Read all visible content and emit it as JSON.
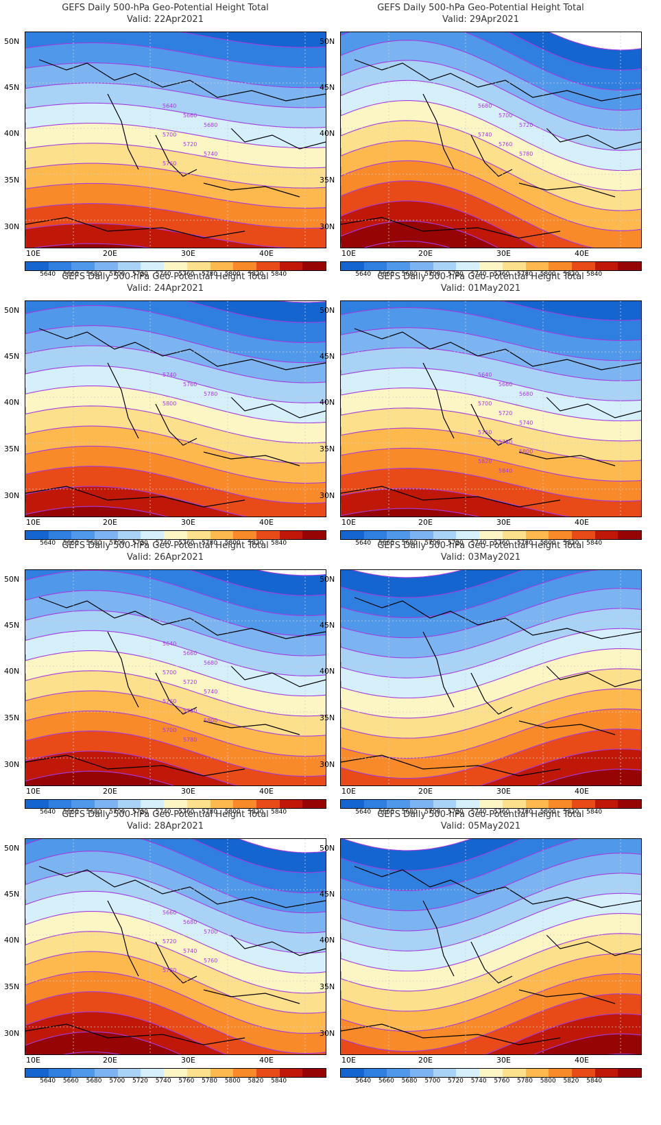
{
  "title": "GEFS Daily 500-hPa Geo-Potential Height Total",
  "valid_prefix": "Valid:",
  "lat_ticks": [
    "50N",
    "45N",
    "40N",
    "35N",
    "30N"
  ],
  "lon_ticks": [
    "10E",
    "20E",
    "30E",
    "40E"
  ],
  "colorbar": {
    "labels": [
      "5640",
      "5660",
      "5680",
      "5700",
      "5720",
      "5740",
      "5760",
      "5780",
      "5800",
      "5820",
      "5840"
    ],
    "colors": [
      "#1565d0",
      "#2f7fe0",
      "#4f98ea",
      "#7bb4f0",
      "#a9d2f7",
      "#d6f0fb",
      "#fbf6c4",
      "#fde08c",
      "#fdb94d",
      "#f88a2a",
      "#e84b17",
      "#c01808",
      "#960404"
    ]
  },
  "contour_color": "#a43be0",
  "panels": [
    {
      "id": "p1",
      "valid": "22Apr2021",
      "ridge": 0.3,
      "labels": [
        "5640",
        "5660",
        "5680",
        "5700",
        "5720",
        "5740",
        "5760"
      ]
    },
    {
      "id": "p2",
      "valid": "29Apr2021",
      "ridge": 0.85,
      "labels": [
        "5680",
        "5700",
        "5720",
        "5740",
        "5760",
        "5780"
      ]
    },
    {
      "id": "p3",
      "valid": "24Apr2021",
      "ridge": 0.45,
      "labels": [
        "5740",
        "5760",
        "5780",
        "5800"
      ]
    },
    {
      "id": "p4",
      "valid": "01May2021",
      "ridge": 0.4,
      "labels": [
        "5640",
        "5660",
        "5680",
        "5700",
        "5720",
        "5740",
        "5760",
        "5780",
        "5800",
        "5820",
        "5840"
      ]
    },
    {
      "id": "p5",
      "valid": "26Apr2021",
      "ridge": 0.55,
      "labels": [
        "5640",
        "5660",
        "5680",
        "5700",
        "5720",
        "5740",
        "5760",
        "5780",
        "5800",
        "5700",
        "5780"
      ]
    },
    {
      "id": "p6",
      "valid": "03May2021",
      "ridge": -0.6,
      "labels": []
    },
    {
      "id": "p7",
      "valid": "28Apr2021",
      "ridge": 0.75,
      "labels": [
        "5660",
        "5680",
        "5700",
        "5720",
        "5740",
        "5760",
        "5780"
      ]
    },
    {
      "id": "p8",
      "valid": "05May2021",
      "ridge": -0.7,
      "labels": []
    }
  ]
}
